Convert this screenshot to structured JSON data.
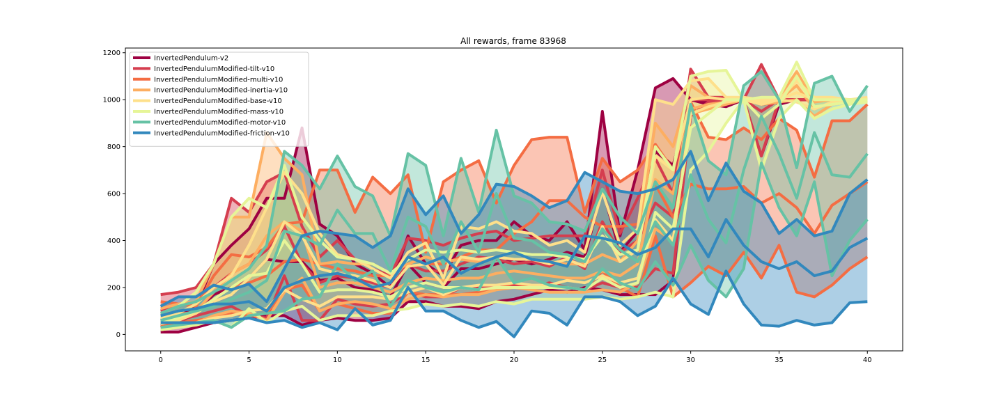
{
  "chart_data": {
    "type": "line",
    "title": "All rewards, frame 83968",
    "xlabel": "",
    "ylabel": "",
    "xlim": [
      -2,
      42
    ],
    "ylim": [
      -70,
      1220
    ],
    "xticks": [
      0,
      5,
      10,
      15,
      20,
      25,
      30,
      35,
      40
    ],
    "yticks": [
      0,
      200,
      400,
      600,
      800,
      1000,
      1200
    ],
    "legend_position": "upper-left",
    "grid": false,
    "x": [
      0,
      1,
      2,
      3,
      4,
      5,
      6,
      7,
      8,
      9,
      10,
      11,
      12,
      13,
      14,
      15,
      16,
      17,
      18,
      19,
      20,
      21,
      22,
      23,
      24,
      25,
      26,
      27,
      28,
      29,
      30,
      31,
      32,
      33,
      34,
      35,
      36,
      37,
      38,
      39,
      40
    ],
    "series": [
      {
        "name": "InvertedPendulum-v2",
        "color": "#9e0142",
        "max": [
          60,
          80,
          120,
          300,
          380,
          450,
          580,
          580,
          880,
          470,
          420,
          300,
          260,
          200,
          420,
          300,
          250,
          380,
          400,
          400,
          480,
          420,
          400,
          480,
          360,
          950,
          420,
          700,
          1050,
          1090,
          1000,
          1000,
          1000,
          1000,
          1000,
          1000,
          1000,
          1000,
          1000,
          1000,
          1000
        ],
        "mean": [
          40,
          50,
          90,
          170,
          200,
          240,
          320,
          310,
          310,
          230,
          240,
          200,
          190,
          160,
          300,
          220,
          200,
          280,
          280,
          300,
          320,
          300,
          320,
          350,
          330,
          620,
          350,
          440,
          780,
          720,
          1000,
          990,
          980,
          1000,
          980,
          990,
          1000,
          1000,
          1000,
          1000,
          1000
        ],
        "min": [
          10,
          10,
          30,
          50,
          60,
          70,
          80,
          80,
          40,
          60,
          70,
          60,
          60,
          70,
          140,
          140,
          120,
          120,
          110,
          140,
          150,
          170,
          190,
          180,
          200,
          190,
          170,
          170,
          170,
          230,
          1000,
          980,
          970,
          1000,
          760,
          980,
          1000,
          1000,
          1000,
          1000,
          1000
        ]
      },
      {
        "name": "InvertedPendulumModified-tilt-v10",
        "color": "#d53e4f",
        "max": [
          170,
          180,
          200,
          300,
          580,
          520,
          650,
          690,
          460,
          330,
          400,
          320,
          280,
          250,
          410,
          400,
          380,
          410,
          430,
          440,
          400,
          410,
          420,
          420,
          420,
          700,
          430,
          580,
          750,
          600,
          1130,
          1010,
          1010,
          1000,
          1150,
          1000,
          1000,
          1000,
          1000,
          1000,
          1000
        ],
        "mean": [
          100,
          120,
          140,
          200,
          260,
          300,
          360,
          460,
          300,
          220,
          250,
          240,
          220,
          200,
          300,
          270,
          270,
          300,
          330,
          320,
          300,
          310,
          290,
          330,
          280,
          480,
          350,
          400,
          560,
          500,
          1000,
          1000,
          1000,
          1000,
          950,
          1000,
          1000,
          1000,
          1000,
          1000,
          1000
        ],
        "min": [
          30,
          60,
          80,
          100,
          120,
          80,
          70,
          250,
          60,
          60,
          150,
          130,
          120,
          130,
          180,
          160,
          160,
          200,
          200,
          200,
          210,
          200,
          220,
          200,
          190,
          220,
          200,
          200,
          280,
          260,
          930,
          990,
          990,
          1000,
          760,
          1000,
          1000,
          1000,
          1000,
          1000,
          1000
        ]
      },
      {
        "name": "InvertedPendulumModified-multi-v10",
        "color": "#f46d43",
        "max": [
          140,
          130,
          120,
          250,
          340,
          330,
          370,
          470,
          480,
          700,
          700,
          520,
          670,
          600,
          680,
          350,
          650,
          700,
          740,
          560,
          720,
          830,
          840,
          840,
          520,
          750,
          650,
          700,
          810,
          700,
          990,
          840,
          830,
          880,
          830,
          920,
          870,
          670,
          910,
          910,
          980
        ],
        "mean": [
          90,
          90,
          90,
          150,
          200,
          220,
          250,
          310,
          320,
          300,
          280,
          270,
          250,
          250,
          330,
          300,
          300,
          330,
          360,
          360,
          430,
          480,
          570,
          570,
          500,
          460,
          460,
          470,
          640,
          500,
          640,
          620,
          620,
          630,
          560,
          600,
          540,
          430,
          550,
          600,
          650
        ],
        "min": [
          40,
          50,
          60,
          70,
          90,
          80,
          90,
          190,
          210,
          100,
          130,
          110,
          90,
          90,
          180,
          170,
          170,
          170,
          180,
          190,
          220,
          200,
          200,
          200,
          190,
          270,
          200,
          160,
          420,
          160,
          220,
          290,
          250,
          350,
          240,
          380,
          180,
          160,
          210,
          280,
          330
        ]
      },
      {
        "name": "InvertedPendulumModified-inertia-v10",
        "color": "#fdae61",
        "max": [
          110,
          130,
          140,
          300,
          500,
          500,
          860,
          750,
          680,
          300,
          310,
          300,
          300,
          260,
          300,
          330,
          310,
          320,
          310,
          330,
          350,
          320,
          310,
          300,
          300,
          340,
          310,
          400,
          900,
          800,
          1060,
          1010,
          1000,
          1010,
          1000,
          1010,
          1120,
          990,
          1000,
          1000,
          1000
        ],
        "mean": [
          60,
          80,
          100,
          180,
          260,
          300,
          420,
          480,
          440,
          200,
          220,
          220,
          200,
          180,
          220,
          240,
          230,
          240,
          240,
          260,
          270,
          260,
          250,
          240,
          240,
          270,
          250,
          300,
          660,
          600,
          960,
          980,
          990,
          1000,
          990,
          1000,
          1060,
          960,
          990,
          1000,
          1000
        ],
        "min": [
          30,
          40,
          50,
          80,
          100,
          90,
          60,
          180,
          240,
          100,
          130,
          140,
          130,
          110,
          150,
          170,
          160,
          170,
          170,
          190,
          200,
          190,
          180,
          180,
          180,
          190,
          180,
          220,
          450,
          400,
          940,
          960,
          980,
          1000,
          980,
          990,
          1000,
          930,
          980,
          990,
          990
        ]
      },
      {
        "name": "InvertedPendulumModified-base-v10",
        "color": "#fee08b",
        "max": [
          70,
          90,
          130,
          200,
          250,
          380,
          540,
          690,
          600,
          430,
          340,
          320,
          280,
          240,
          350,
          390,
          240,
          460,
          450,
          480,
          440,
          430,
          380,
          400,
          350,
          610,
          380,
          450,
          1000,
          980,
          1080,
          1090,
          1010,
          1010,
          1000,
          1000,
          1080,
          1010,
          1010,
          1000,
          1010
        ],
        "mean": [
          45,
          60,
          90,
          140,
          170,
          240,
          320,
          480,
          420,
          280,
          260,
          250,
          230,
          200,
          290,
          300,
          210,
          330,
          320,
          330,
          320,
          320,
          300,
          320,
          290,
          460,
          310,
          360,
          760,
          700,
          1000,
          1010,
          1000,
          1000,
          990,
          1000,
          1030,
          1000,
          1000,
          1000,
          1000
        ],
        "min": [
          20,
          30,
          50,
          70,
          80,
          100,
          110,
          190,
          150,
          120,
          160,
          160,
          160,
          150,
          180,
          200,
          170,
          200,
          210,
          210,
          220,
          210,
          210,
          230,
          220,
          250,
          220,
          240,
          490,
          400,
          940,
          970,
          990,
          1000,
          980,
          1000,
          990,
          960,
          990,
          990,
          990
        ]
      },
      {
        "name": "InvertedPendulumModified-mass-v10",
        "color": "#e6f598",
        "max": [
          90,
          120,
          180,
          300,
          500,
          580,
          540,
          720,
          500,
          400,
          330,
          320,
          300,
          260,
          320,
          360,
          350,
          360,
          350,
          360,
          350,
          340,
          340,
          330,
          320,
          420,
          340,
          360,
          800,
          700,
          1100,
          1120,
          1125,
          1000,
          1010,
          1010,
          1160,
          1000,
          1000,
          1000,
          1000
        ],
        "mean": [
          50,
          70,
          100,
          150,
          200,
          250,
          260,
          400,
          300,
          180,
          190,
          190,
          180,
          160,
          200,
          220,
          200,
          200,
          190,
          200,
          200,
          200,
          200,
          200,
          190,
          240,
          200,
          220,
          520,
          450,
          880,
          940,
          1000,
          1000,
          920,
          980,
          1100,
          970,
          980,
          990,
          1000
        ],
        "min": [
          20,
          30,
          40,
          60,
          30,
          110,
          50,
          100,
          120,
          60,
          80,
          80,
          80,
          100,
          110,
          130,
          120,
          130,
          120,
          140,
          130,
          150,
          150,
          150,
          150,
          160,
          150,
          160,
          180,
          160,
          700,
          780,
          900,
          1000,
          700,
          920,
          1000,
          920,
          960,
          980,
          990
        ]
      },
      {
        "name": "InvertedPendulumModified-motor-v10",
        "color": "#66c2a5",
        "max": [
          90,
          120,
          140,
          180,
          230,
          280,
          380,
          780,
          720,
          620,
          760,
          630,
          590,
          420,
          770,
          720,
          420,
          750,
          520,
          870,
          590,
          560,
          480,
          470,
          440,
          620,
          500,
          430,
          650,
          540,
          980,
          740,
          680,
          1060,
          1120,
          1000,
          710,
          1070,
          1100,
          950,
          1060
        ],
        "mean": [
          60,
          80,
          100,
          120,
          150,
          180,
          230,
          440,
          420,
          380,
          530,
          430,
          430,
          270,
          500,
          460,
          300,
          480,
          350,
          600,
          410,
          400,
          350,
          340,
          310,
          450,
          360,
          310,
          480,
          380,
          680,
          490,
          390,
          700,
          930,
          770,
          580,
          860,
          680,
          670,
          770
        ],
        "min": [
          30,
          40,
          50,
          60,
          30,
          80,
          90,
          100,
          150,
          160,
          300,
          230,
          270,
          120,
          230,
          200,
          180,
          200,
          190,
          330,
          220,
          240,
          210,
          200,
          190,
          280,
          220,
          190,
          310,
          210,
          380,
          230,
          160,
          280,
          730,
          540,
          420,
          650,
          250,
          400,
          490
        ]
      },
      {
        "name": "InvertedPendulumModified-friction-v10",
        "color": "#3288bd",
        "max": [
          120,
          160,
          160,
          210,
          190,
          215,
          140,
          280,
          420,
          440,
          430,
          420,
          370,
          420,
          620,
          510,
          590,
          430,
          510,
          640,
          630,
          590,
          540,
          570,
          690,
          650,
          610,
          600,
          620,
          660,
          780,
          570,
          730,
          610,
          560,
          430,
          490,
          420,
          440,
          600,
          660
        ],
        "mean": [
          80,
          100,
          110,
          130,
          130,
          140,
          100,
          200,
          230,
          250,
          260,
          240,
          200,
          220,
          330,
          300,
          330,
          260,
          300,
          330,
          350,
          320,
          310,
          290,
          420,
          410,
          390,
          340,
          370,
          450,
          450,
          330,
          490,
          380,
          310,
          280,
          310,
          250,
          270,
          370,
          410
        ],
        "min": [
          50,
          50,
          50,
          50,
          60,
          70,
          50,
          60,
          30,
          50,
          20,
          110,
          40,
          60,
          200,
          100,
          100,
          60,
          30,
          55,
          -10,
          100,
          90,
          40,
          160,
          160,
          140,
          80,
          120,
          240,
          130,
          85,
          270,
          130,
          40,
          35,
          60,
          40,
          50,
          135,
          140
        ]
      }
    ]
  }
}
